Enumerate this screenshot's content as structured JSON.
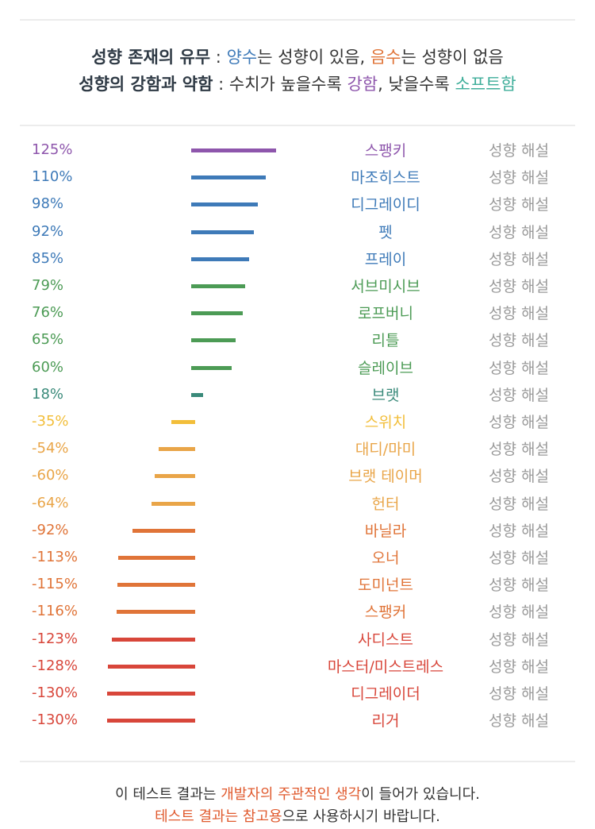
{
  "legend": {
    "line1": {
      "label": "성향 존재의 유무",
      "colon": " : ",
      "pos_word": "양수",
      "pos_rest": "는 성향이 있음, ",
      "neg_word": "음수",
      "neg_rest": "는 성향이 없음"
    },
    "line2": {
      "label": "성향의 강함과 약함",
      "colon": " : ",
      "pre": "수치가 높을수록 ",
      "strong_word": "강함",
      "mid": ", 낮을수록 ",
      "soft_word": "소프트함"
    }
  },
  "colors": {
    "blue": "#3e7ab8",
    "green": "#4c9b55",
    "purple": "#8e56ac",
    "teal": "#3a8a7a",
    "yellow": "#f2be3a",
    "light_orange": "#e9a548",
    "orange": "#e07438",
    "red": "#d8463a"
  },
  "row_action_label": "성향 해설",
  "chart_data": {
    "type": "bar",
    "orientation": "horizontal",
    "unit": "%",
    "categories": [
      "스팽키",
      "마조히스트",
      "디그레이디",
      "펫",
      "프레이",
      "서브미시브",
      "로프버니",
      "리틀",
      "슬레이브",
      "브랫",
      "스위치",
      "대디/마미",
      "브랫 테이머",
      "헌터",
      "바닐라",
      "오너",
      "도미넌트",
      "스팽커",
      "사디스트",
      "마스터/미스트레스",
      "디그레이더",
      "리거"
    ],
    "values": [
      125,
      110,
      98,
      92,
      85,
      79,
      76,
      65,
      60,
      18,
      -35,
      -54,
      -60,
      -64,
      -92,
      -113,
      -115,
      -116,
      -123,
      -128,
      -130,
      -130
    ],
    "value_labels": [
      "125%",
      "110%",
      "98%",
      "92%",
      "85%",
      "79%",
      "76%",
      "65%",
      "60%",
      "18%",
      "-35%",
      "-54%",
      "-60%",
      "-64%",
      "-92%",
      "-113%",
      "-115%",
      "-116%",
      "-123%",
      "-128%",
      "-130%",
      "-130%"
    ],
    "bar_colors": [
      "#8e56ac",
      "#3e7ab8",
      "#3e7ab8",
      "#3e7ab8",
      "#3e7ab8",
      "#4c9b55",
      "#4c9b55",
      "#4c9b55",
      "#4c9b55",
      "#3a8a7a",
      "#f2be3a",
      "#e9a548",
      "#e9a548",
      "#e9a548",
      "#e07438",
      "#e07438",
      "#e07438",
      "#e07438",
      "#d8463a",
      "#d8463a",
      "#d8463a",
      "#d8463a"
    ],
    "label_colors": [
      "#8e56ac",
      "#3e7ab8",
      "#3e7ab8",
      "#3e7ab8",
      "#3e7ab8",
      "#4c9b55",
      "#4c9b55",
      "#4c9b55",
      "#4c9b55",
      "#3a8a7a",
      "#f2be3a",
      "#e9a548",
      "#e9a548",
      "#e9a548",
      "#e07438",
      "#e07438",
      "#e07438",
      "#e07438",
      "#d8463a",
      "#d8463a",
      "#d8463a",
      "#d8463a"
    ],
    "title": "",
    "xlabel": "",
    "ylabel": "",
    "xlim": [
      -130,
      125
    ],
    "grid": false
  },
  "footer": {
    "line1_pre": "이 테스트 결과는 ",
    "line1_emph": "개발자의 주관적인 생각",
    "line1_post": "이 들어가 있습니다.",
    "line2_emph": "테스트 결과는 참고용",
    "line2_post": "으로 사용하시기 바랍니다."
  }
}
